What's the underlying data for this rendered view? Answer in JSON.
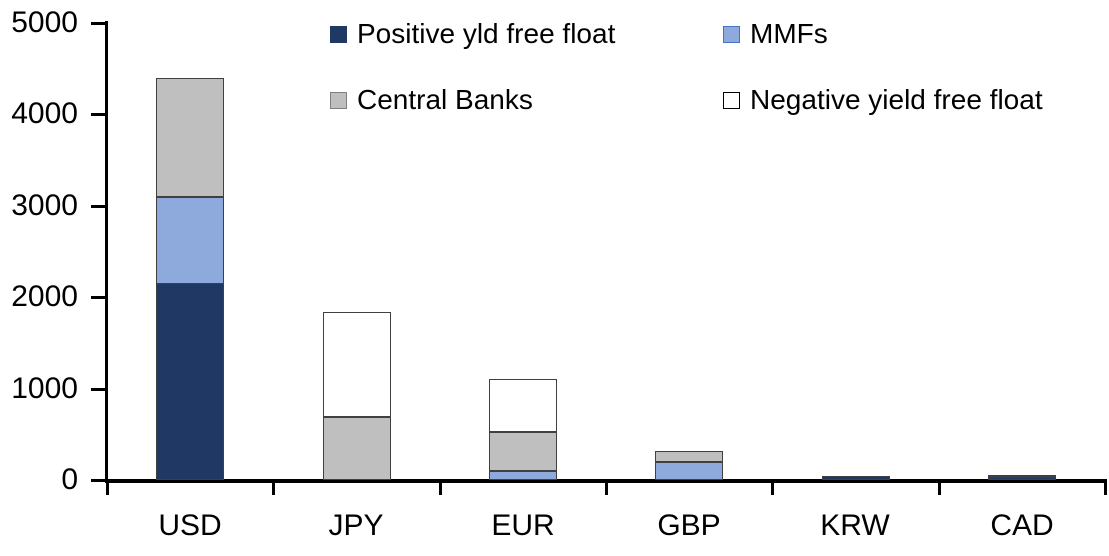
{
  "chart_data": {
    "type": "bar",
    "stacked": true,
    "title": "",
    "xlabel": "",
    "ylabel": "",
    "categories": [
      "USD",
      "JPY",
      "EUR",
      "GBP",
      "KRW",
      "CAD"
    ],
    "series": [
      {
        "name": "Positive yld free float",
        "color": "#1F3864",
        "swatch_border": "#1F3864",
        "values": [
          2150,
          0,
          0,
          0,
          40,
          30
        ]
      },
      {
        "name": "MMFs",
        "color": "#8EA9DB",
        "swatch_border": "#4472C4",
        "values": [
          950,
          0,
          100,
          200,
          0,
          0
        ]
      },
      {
        "name": "Central Banks",
        "color": "#BFBFBF",
        "swatch_border": "#808080",
        "values": [
          1300,
          690,
          430,
          120,
          0,
          25
        ]
      },
      {
        "name": "Negative yield free float",
        "color": "#FFFFFF",
        "swatch_border": "#000000",
        "values": [
          0,
          1150,
          580,
          0,
          0,
          0
        ]
      }
    ],
    "totals": {
      "USD": 4400,
      "JPY": 1840,
      "EUR": 1110,
      "GBP": 320,
      "KRW": 40,
      "CAD": 55
    },
    "ylim": [
      0,
      5000
    ],
    "ytick_step": 1000,
    "ytick_labels": [
      "0",
      "1000",
      "2000",
      "3000",
      "4000",
      "5000"
    ],
    "grid": false,
    "legend_position": "top",
    "legend_rows": [
      [
        "Positive yld free float",
        "MMFs"
      ],
      [
        "Central Banks",
        "Negative yield free float"
      ]
    ],
    "colors": {
      "axis": "#000000",
      "bar_border": "#404040",
      "background": "#FFFFFF",
      "text": "#000000"
    }
  }
}
